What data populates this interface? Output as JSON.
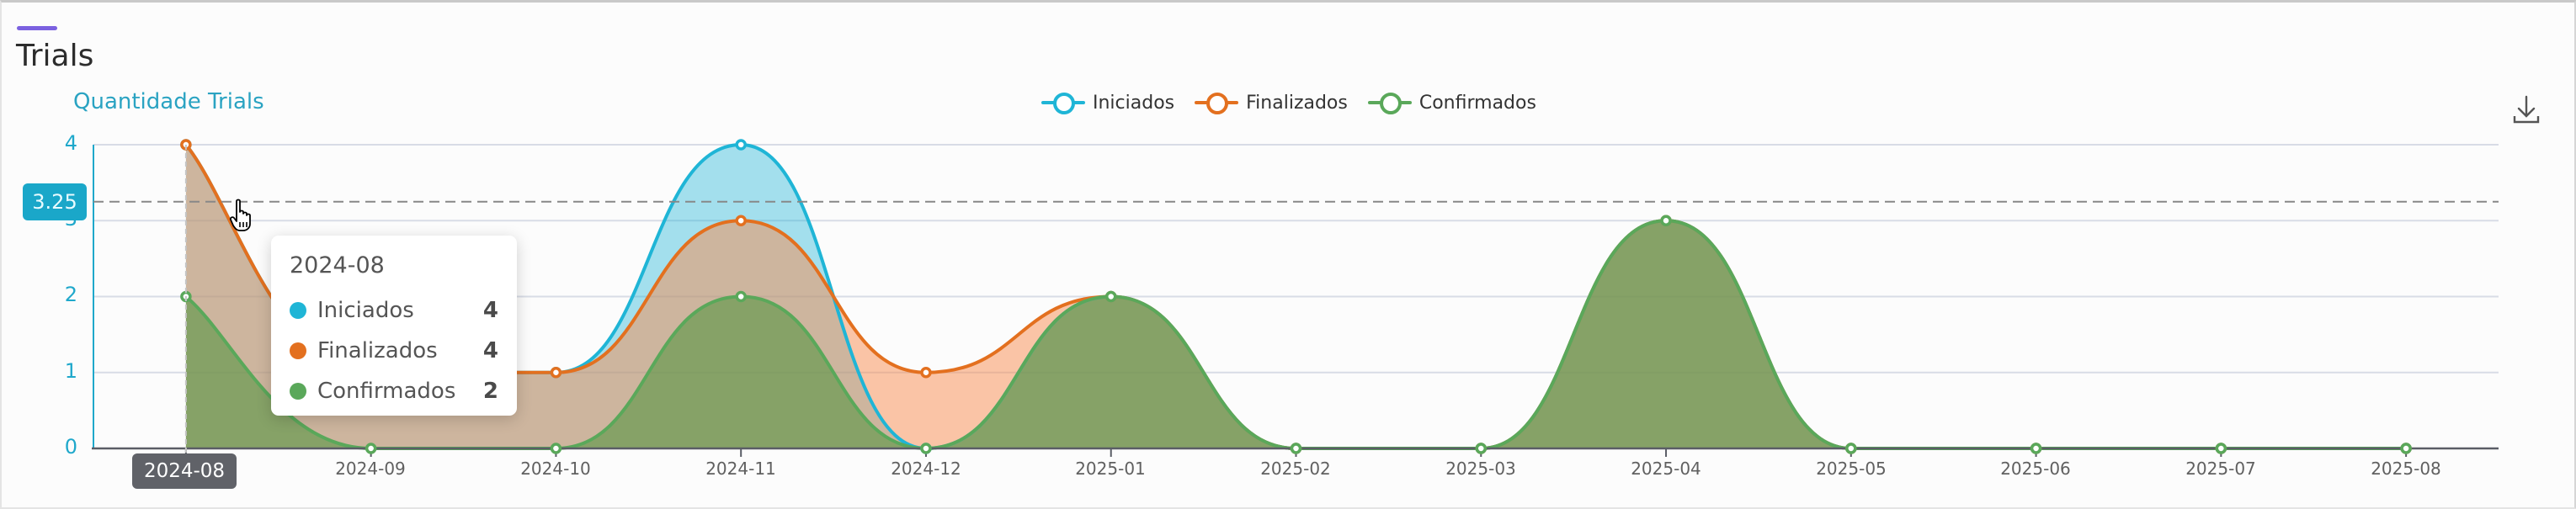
{
  "card": {
    "title": "Trials",
    "accent_color": "#7b61e0"
  },
  "chart": {
    "title": "Quantidade Trials",
    "download_icon": "download-icon",
    "legend": [
      {
        "name": "Iniciados",
        "color": "#1fb5d6"
      },
      {
        "name": "Finalizados",
        "color": "#e3701f"
      },
      {
        "name": "Confirmados",
        "color": "#5aa85a"
      }
    ],
    "y_axis_labels": [
      "0",
      "1",
      "2",
      "3",
      "4"
    ],
    "x_axis_labels": [
      "2024-08",
      "2024-09",
      "2024-10",
      "2024-11",
      "2024-12",
      "2025-01",
      "2025-02",
      "2025-03",
      "2025-04",
      "2025-05",
      "2025-06",
      "2025-07",
      "2025-08"
    ],
    "axis_pointer": {
      "x_label": "2024-08",
      "y_label": "3.25"
    },
    "tooltip": {
      "title": "2024-08",
      "rows": [
        {
          "name": "Iniciados",
          "value": "4",
          "color": "#1fb5d6"
        },
        {
          "name": "Finalizados",
          "value": "4",
          "color": "#e3701f"
        },
        {
          "name": "Confirmados",
          "value": "2",
          "color": "#5aa85a"
        }
      ]
    }
  },
  "chart_data": {
    "type": "area",
    "title": "Quantidade Trials",
    "xlabel": "",
    "ylabel": "",
    "ylim": [
      0,
      4
    ],
    "grid": true,
    "smooth": true,
    "legend_position": "top-center",
    "categories": [
      "2024-08",
      "2024-09",
      "2024-10",
      "2024-11",
      "2024-12",
      "2025-01",
      "2025-02",
      "2025-03",
      "2025-04",
      "2025-05",
      "2025-06",
      "2025-07",
      "2025-08"
    ],
    "series": [
      {
        "name": "Iniciados",
        "color": "#1fb5d6",
        "fill": "rgba(31,181,214,0.40)",
        "values": [
          4,
          1,
          1,
          4,
          0,
          2,
          0,
          0,
          3,
          0,
          0,
          0,
          0
        ]
      },
      {
        "name": "Finalizados",
        "color": "#e3701f",
        "fill": "rgba(247,140,80,0.50)",
        "values": [
          4,
          1,
          1,
          3,
          1,
          2,
          0,
          0,
          3,
          0,
          0,
          0,
          0
        ]
      },
      {
        "name": "Confirmados",
        "color": "#5aa85a",
        "fill": "rgba(90,150,70,0.62)",
        "values": [
          2,
          0,
          0,
          2,
          0,
          2,
          0,
          0,
          3,
          0,
          0,
          0,
          0
        ]
      }
    ],
    "annotations": {
      "axis_pointer_y": 3.25,
      "hover_category": "2024-08"
    }
  }
}
